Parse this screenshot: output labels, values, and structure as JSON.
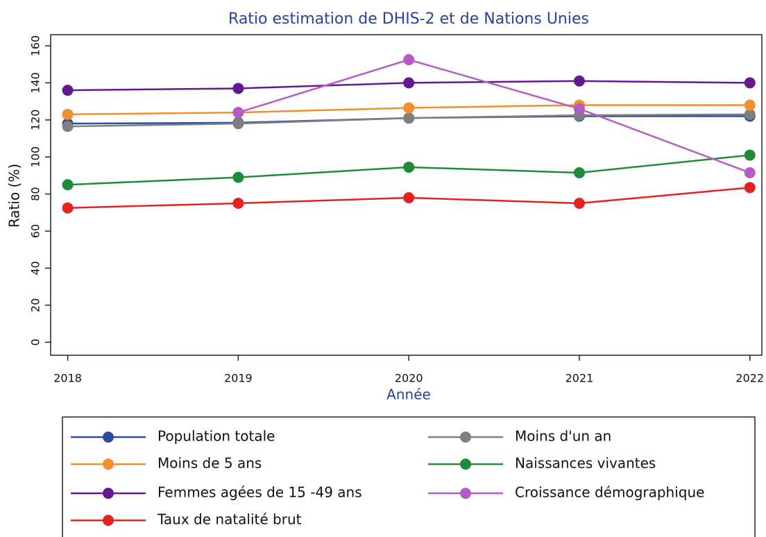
{
  "chart_data": {
    "type": "line",
    "title": "Ratio estimation de DHIS-2 et de Nations Unies",
    "x_label": "Année",
    "y_label": "Ratio (%)",
    "x": [
      2018,
      2019,
      2020,
      2021,
      2022
    ],
    "xlim": [
      2017.9,
      2022.07
    ],
    "xticks": [
      2018,
      2019,
      2020,
      2021,
      2022
    ],
    "ylim": [
      -7,
      166
    ],
    "yticks": [
      0,
      20,
      40,
      60,
      80,
      100,
      120,
      140,
      160
    ],
    "series": [
      {
        "name": "Population totale",
        "color": "#2b4ea2",
        "values": [
          118,
          118.5,
          121,
          122,
          122
        ]
      },
      {
        "name": "Moins d'un an",
        "color": "#7f7f7f",
        "values": [
          116.5,
          118,
          121,
          122.5,
          123
        ]
      },
      {
        "name": "Moins de 5 ans",
        "color": "#f28e2b",
        "values": [
          123,
          124,
          126.5,
          128,
          128
        ]
      },
      {
        "name": "Naissances vivantes",
        "color": "#1f8a3a",
        "values": [
          85,
          89,
          94.5,
          91.5,
          101
        ]
      },
      {
        "name": "Femmes agées de 15 -49 ans",
        "color": "#65198f",
        "values": [
          136,
          137,
          140,
          141,
          140
        ]
      },
      {
        "name": "Croissance démographique",
        "color": "#b35cc8",
        "values": [
          null,
          124,
          152.5,
          126,
          91.5
        ]
      },
      {
        "name": "Taux de natalité brut",
        "color": "#e3231f",
        "values": [
          72.5,
          75,
          78,
          75,
          83.5
        ]
      }
    ]
  }
}
